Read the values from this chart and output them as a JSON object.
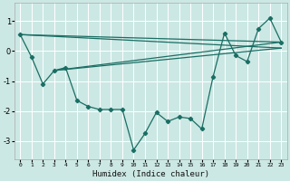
{
  "xlabel": "Humidex (Indice chaleur)",
  "bg_color": "#cce8e4",
  "line_color": "#1a6e64",
  "grid_color": "#ffffff",
  "xlim": [
    -0.5,
    23.5
  ],
  "ylim": [
    -3.6,
    1.6
  ],
  "yticks": [
    -3,
    -2,
    -1,
    0,
    1
  ],
  "xticks": [
    0,
    1,
    2,
    3,
    4,
    5,
    6,
    7,
    8,
    9,
    10,
    11,
    12,
    13,
    14,
    15,
    16,
    17,
    18,
    19,
    20,
    21,
    22,
    23
  ],
  "main_x": [
    0,
    1,
    2,
    3,
    4,
    5,
    6,
    7,
    8,
    9,
    10,
    11,
    12,
    13,
    14,
    15,
    16,
    17,
    18,
    19,
    20,
    21,
    22,
    23
  ],
  "main_y": [
    0.55,
    -0.2,
    -1.1,
    -0.65,
    -0.55,
    -1.65,
    -1.85,
    -1.95,
    -1.95,
    -1.95,
    -3.3,
    -2.75,
    -2.05,
    -2.35,
    -2.2,
    -2.25,
    -2.6,
    -0.85,
    0.6,
    -0.15,
    -0.35,
    0.75,
    1.1,
    0.3
  ],
  "line1_x": [
    0,
    23
  ],
  "line1_y": [
    0.55,
    0.3
  ],
  "line2_x": [
    0,
    23
  ],
  "line2_y": [
    0.55,
    0.1
  ],
  "line3_x": [
    3,
    23
  ],
  "line3_y": [
    -0.65,
    0.3
  ],
  "line4_x": [
    3,
    23
  ],
  "line4_y": [
    -0.65,
    0.1
  ]
}
